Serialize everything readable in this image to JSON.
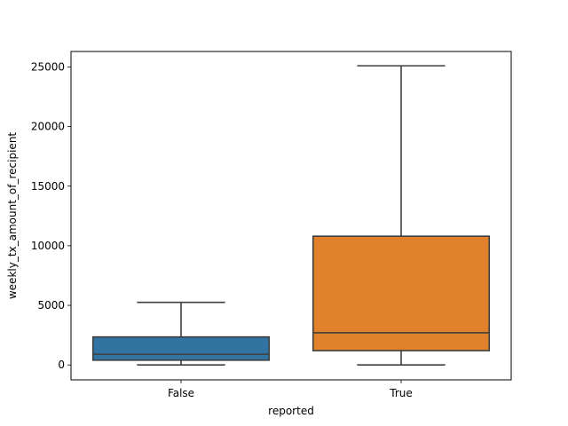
{
  "chart_data": {
    "type": "box",
    "title": "",
    "xlabel": "reported",
    "ylabel": "weekly_tx_amount_of_recipient",
    "categories": [
      "False",
      "True"
    ],
    "ylim": [
      -1250,
      26300
    ],
    "yticks": [
      0,
      5000,
      10000,
      15000,
      20000,
      25000
    ],
    "grid": false,
    "legend": "none",
    "boxes": [
      {
        "category": "False",
        "whisker_low": 0,
        "q1": 400,
        "median": 900,
        "q3": 2350,
        "whisker_high": 5250,
        "color": "#3274a1"
      },
      {
        "category": "True",
        "whisker_low": 0,
        "q1": 1200,
        "median": 2700,
        "q3": 10800,
        "whisker_high": 25100,
        "color": "#e1812c"
      }
    ]
  },
  "style": {
    "line_color": "#3f3f3f",
    "axis_color": "#000000"
  }
}
